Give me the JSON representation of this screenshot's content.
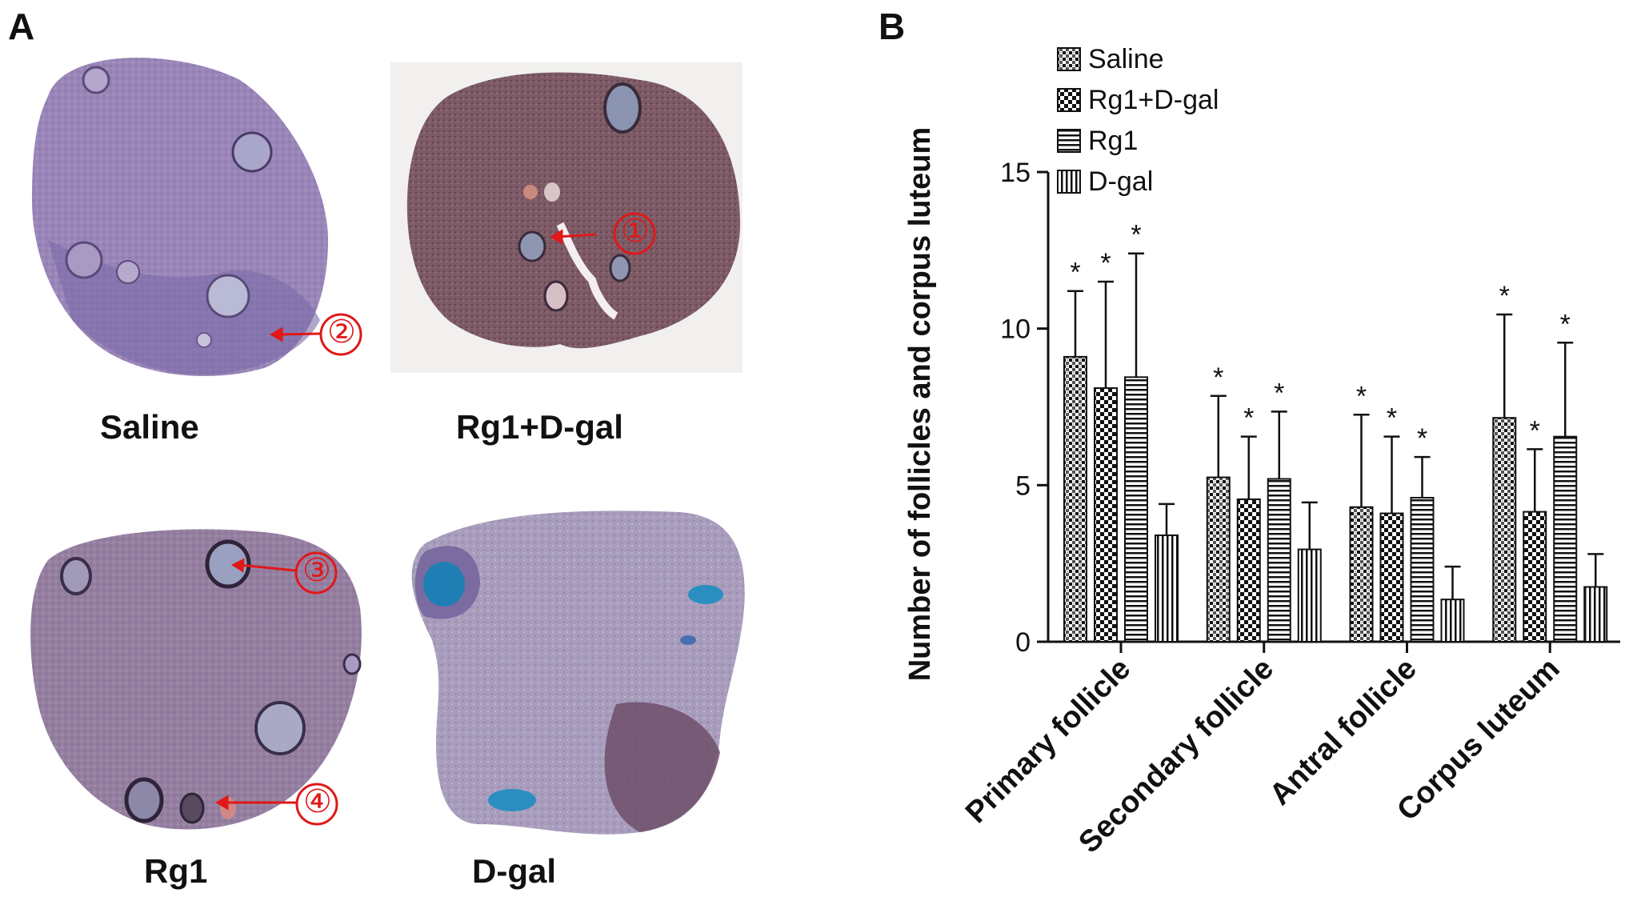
{
  "panel_a": {
    "label": "A",
    "captions": [
      "Saline",
      "Rg1+D-gal",
      "Rg1",
      "D-gal"
    ],
    "markers": [
      "①",
      "②",
      "③",
      "④"
    ],
    "colors": {
      "marker": "#e01818",
      "tissue_pink": "#9a7fa8",
      "tissue_purple": "#7a6aa6",
      "tissue_dark": "#6b4b5a",
      "stain_blue": "#2a7fb0"
    }
  },
  "panel_b": {
    "label": "B"
  },
  "chart_data": {
    "type": "bar",
    "ylabel": "Number of follicles and corpus luteum",
    "xlabel": "",
    "ylim": [
      0,
      15
    ],
    "yticks": [
      0,
      5,
      10,
      15
    ],
    "categories": [
      "Primary follicle",
      "Secondary follicle",
      "Antral follicle",
      "Corpus luteum"
    ],
    "legend_position": "top-left",
    "grid": false,
    "series": [
      {
        "name": "Saline",
        "pattern": "dots",
        "values": [
          9.1,
          5.25,
          4.3,
          7.15
        ],
        "errors": [
          2.1,
          2.6,
          2.95,
          3.3
        ],
        "significance": [
          "*",
          "*",
          "*",
          "*"
        ]
      },
      {
        "name": "Rg1+D-gal",
        "pattern": "checker",
        "values": [
          8.1,
          4.55,
          4.1,
          4.15
        ],
        "errors": [
          3.4,
          2.0,
          2.45,
          2.0
        ],
        "significance": [
          "*",
          "*",
          "*",
          "*"
        ]
      },
      {
        "name": "Rg1",
        "pattern": "horizontal",
        "values": [
          8.45,
          5.2,
          4.6,
          6.55
        ],
        "errors": [
          3.95,
          2.15,
          1.3,
          3.0
        ],
        "significance": [
          "*",
          "*",
          "*",
          "*"
        ]
      },
      {
        "name": "D-gal",
        "pattern": "vertical",
        "values": [
          3.4,
          2.95,
          1.35,
          1.75
        ],
        "errors": [
          1.0,
          1.5,
          1.05,
          1.05
        ],
        "significance": [
          "",
          "",
          "",
          ""
        ]
      }
    ]
  }
}
